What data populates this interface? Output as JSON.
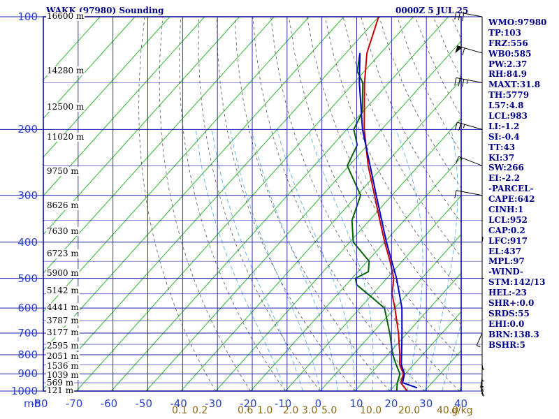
{
  "header": {
    "title": "WAKK (97980) Sounding",
    "datetime": "0000Z  5 JUL 25"
  },
  "pressure_labels": [
    "100",
    "200",
    "300",
    "400",
    "500",
    "600",
    "700",
    "800",
    "900",
    "1000"
  ],
  "height_labels": [
    "16600 m",
    "14280 m",
    "12500 m",
    "11020 m",
    "9750 m",
    "8626 m",
    "7630 m",
    "6723 m",
    "5900 m",
    "5142 m",
    "4441 m",
    "3787 m",
    "3177 m",
    "2595 m",
    "2051 m",
    "1536 m",
    "1039 m",
    "569 m",
    "121 m"
  ],
  "axis_unit_label": "mb",
  "temp_labels": [
    "-80",
    "-70",
    "-60",
    "-50",
    "-40",
    "-30",
    "-20",
    "-10",
    "0",
    "10",
    "20",
    "30",
    "40"
  ],
  "mixing_labels": [
    "0.1",
    "0.2",
    "0.6",
    "1.0",
    "2.0",
    "3.0",
    "5.0",
    "10.0",
    "20.0",
    "40.0",
    "g/kg"
  ],
  "indices": [
    "WMO:97980",
    "TP:103",
    "FRZ:556",
    "WB0:585",
    "PW:2.37",
    "RH:84.9",
    "MAXT:31.8",
    "TH:5779",
    "L57:4.8",
    "LCL:983",
    "LI:-1.2",
    "SI:-0.4",
    "TT:43",
    "KI:37",
    "SW:266",
    "EI:-2.2",
    "-PARCEL-",
    "CAPE:642",
    "CINH:1",
    "LCL:952",
    "CAP:0.2",
    "LFC:917",
    "EL:437",
    "MPL:97",
    "-WIND-",
    "STM:142/13",
    "HEL:-23",
    "SHR+:0.0",
    "SRDS:55",
    "EHI:0.0",
    "BRN:138.3",
    "BSHR:5"
  ],
  "colors": {
    "frame": "#00008b",
    "isobar": "#1c1ca6",
    "isotherm": "#2eb82e",
    "dry_adiabat": "#555555",
    "moist_adiabat": "#4aa8e8",
    "temperature": "#cc0000",
    "dewpoint": "#006400",
    "parcel": "#0000cc",
    "label_blue": "#2a42c8",
    "label_mix": "#8b6914"
  },
  "chart_data": {
    "type": "line",
    "title": "WAKK (97980) Sounding",
    "xlabel": "",
    "ylabel": "mb",
    "xlim": [
      -80,
      40
    ],
    "ylim": [
      1000,
      100
    ],
    "y_scale": "log",
    "skew": true,
    "grid": true,
    "series": [
      {
        "key": "temperature",
        "pressure": [
          1000,
          950,
          900,
          850,
          800,
          700,
          600,
          550,
          500,
          450,
          400,
          350,
          300,
          250,
          200,
          150,
          125,
          100
        ],
        "temp": [
          25.0,
          21.0,
          19.5,
          16.0,
          13.5,
          7.5,
          0.0,
          -4.5,
          -8.0,
          -13.5,
          -20.0,
          -27.0,
          -35.0,
          -44.5,
          -55.0,
          -67.0,
          -74.0,
          -80.0
        ]
      },
      {
        "key": "dewpoint",
        "pressure": [
          1000,
          950,
          900,
          850,
          800,
          700,
          600,
          570,
          550,
          520,
          500,
          480,
          450,
          400,
          350,
          300,
          250,
          220,
          200,
          180,
          150,
          140,
          125
        ],
        "temp": [
          22.0,
          20.0,
          18.5,
          15.0,
          11.5,
          5.0,
          -3.0,
          -8.0,
          -11.5,
          -17.0,
          -19.0,
          -17.0,
          -19.5,
          -29.0,
          -35.0,
          -39.0,
          -50.5,
          -53.0,
          -58.0,
          -60.0,
          -67.5,
          -72.0,
          -76.0
        ]
      },
      {
        "key": "parcel",
        "pressure": [
          980,
          950,
          900,
          850,
          800,
          700,
          600,
          500,
          450,
          400,
          300,
          200,
          150,
          125
        ],
        "temp": [
          27.0,
          21.5,
          19.8,
          16.5,
          14.0,
          8.5,
          2.0,
          -7.2,
          -13.0,
          -19.5,
          -34.5,
          -55.5,
          -68.5,
          -76.0
        ]
      }
    ],
    "wind_barbs": [
      {
        "p": 1000,
        "dir": 110,
        "spd": 10
      },
      {
        "p": 975,
        "dir": 120,
        "spd": 15
      },
      {
        "p": 950,
        "dir": 125,
        "spd": 20
      },
      {
        "p": 925,
        "dir": 130,
        "spd": 20
      },
      {
        "p": 900,
        "dir": 120,
        "spd": 15
      },
      {
        "p": 850,
        "dir": 110,
        "spd": 15
      },
      {
        "p": 700,
        "dir": 150,
        "spd": 10
      },
      {
        "p": 500,
        "dir": 90,
        "spd": 5
      },
      {
        "p": 400,
        "dir": 70,
        "spd": 5
      },
      {
        "p": 300,
        "dir": 290,
        "spd": 10
      },
      {
        "p": 250,
        "dir": 310,
        "spd": 15
      },
      {
        "p": 200,
        "dir": 300,
        "spd": 25
      },
      {
        "p": 150,
        "dir": 290,
        "spd": 35
      },
      {
        "p": 125,
        "dir": 300,
        "spd": 60
      },
      {
        "p": 100,
        "dir": 290,
        "spd": 30
      }
    ]
  }
}
